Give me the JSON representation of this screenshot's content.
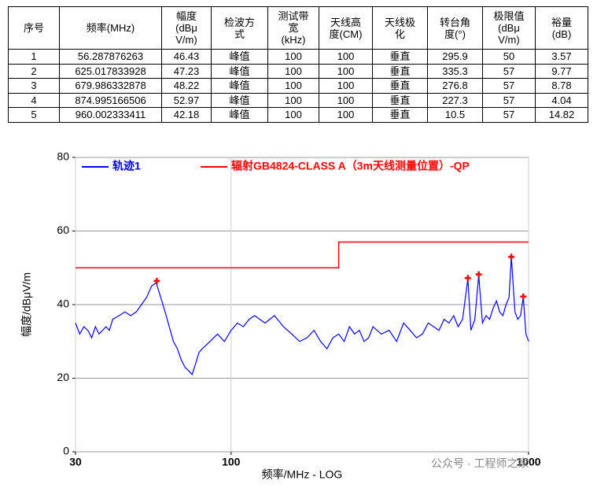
{
  "table": {
    "header": [
      "序号",
      "频率(MHz)",
      "幅度\n(dBμ\nV/m)",
      "检波方\n式",
      "测试带\n宽\n(kHz)",
      "天线高\n度(CM)",
      "天线极\n化",
      "转台角\n度(°)",
      "极限值\n(dBμ\nV/m)",
      "裕量\n(dB)"
    ],
    "rows": [
      [
        1,
        56.287876263,
        46.43,
        "峰值",
        100,
        100,
        "垂直",
        295.9,
        50,
        3.57
      ],
      [
        2,
        625.017833928,
        47.23,
        "峰值",
        100,
        100,
        "垂直",
        335.3,
        57,
        9.77
      ],
      [
        3,
        679.986332878,
        48.22,
        "峰值",
        100,
        100,
        "垂直",
        276.8,
        57,
        8.78
      ],
      [
        4,
        874.995166506,
        52.97,
        "峰值",
        100,
        100,
        "垂直",
        227.3,
        57,
        4.04
      ],
      [
        5,
        960.002333411,
        42.18,
        "峰值",
        100,
        100,
        "垂直",
        10.5,
        57,
        14.82
      ]
    ]
  },
  "chart_data": {
    "type": "line",
    "x_label": "频率/MHz - LOG",
    "y_label": "幅度/dBμV/m",
    "x_log": true,
    "xlim": [
      30,
      1000
    ],
    "xticks": [
      30,
      100,
      1000
    ],
    "ylim": [
      0,
      80
    ],
    "yticks": [
      0,
      20,
      40,
      60,
      80
    ],
    "grid": true,
    "series": [
      {
        "name": "轨迹1",
        "color": "#0000ff",
        "x": [
          30,
          31,
          32,
          33,
          34,
          35,
          36,
          37,
          38,
          39,
          40,
          42,
          44,
          46,
          48,
          50,
          52,
          54,
          56,
          58,
          60,
          62,
          64,
          66,
          68,
          70,
          72,
          74,
          76,
          78,
          80,
          85,
          90,
          95,
          100,
          105,
          110,
          115,
          120,
          130,
          140,
          150,
          160,
          170,
          180,
          190,
          200,
          210,
          220,
          230,
          240,
          250,
          260,
          270,
          280,
          290,
          300,
          320,
          340,
          360,
          380,
          400,
          420,
          440,
          460,
          480,
          500,
          520,
          540,
          560,
          580,
          600,
          625,
          640,
          660,
          680,
          700,
          720,
          740,
          760,
          780,
          800,
          820,
          840,
          860,
          875,
          900,
          920,
          940,
          960,
          980,
          1000
        ],
        "values": [
          35,
          32,
          34,
          33,
          31,
          34,
          32,
          33,
          34,
          33,
          36,
          37,
          38,
          37,
          38,
          40,
          42,
          45,
          46,
          42,
          38,
          34,
          30,
          28,
          25,
          23,
          22,
          21,
          24,
          27,
          28,
          30,
          32,
          30,
          33,
          35,
          34,
          36,
          37,
          35,
          37,
          34,
          32,
          30,
          31,
          33,
          30,
          28,
          31,
          32,
          30,
          34,
          32,
          33,
          30,
          31,
          34,
          32,
          33,
          30,
          35,
          33,
          31,
          32,
          35,
          34,
          33,
          36,
          35,
          37,
          34,
          36,
          47,
          33,
          36,
          48,
          35,
          37,
          36,
          39,
          41,
          38,
          37,
          40,
          42,
          53,
          38,
          36,
          37,
          42,
          32,
          30
        ]
      },
      {
        "name": "辐射GB4824-CLASS A（3m天线测量位置）-QP",
        "color": "#ff0000",
        "x": [
          30,
          230,
          230,
          1000
        ],
        "values": [
          50,
          50,
          57,
          57
        ]
      }
    ]
  },
  "watermark": "公众号 · 工程师之家"
}
